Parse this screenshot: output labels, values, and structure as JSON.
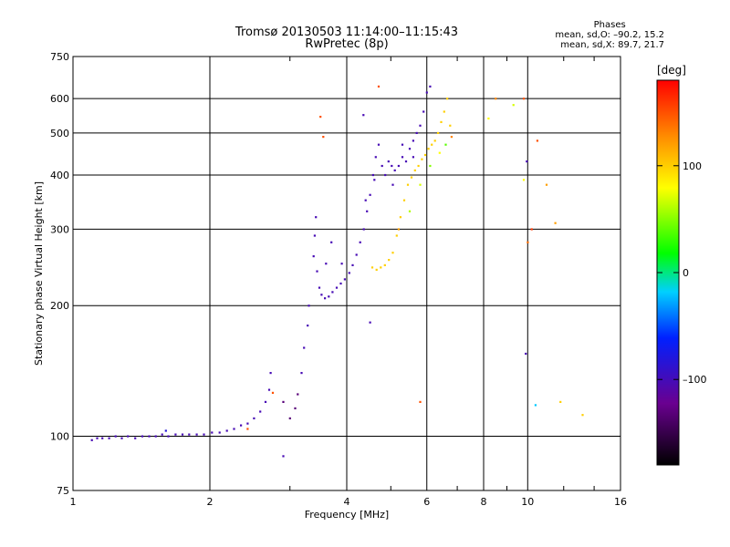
{
  "title": "Tromsø 20130503 11:14:00–11:15:43",
  "subtitle": "RwPretec (8p)",
  "phases": {
    "title": "Phases",
    "line1": "mean, sd,O: –90.2, 15.2",
    "line2": "mean, sd,X:  89.7, 21.7"
  },
  "colorbar": {
    "unit": "[deg]",
    "ticks": [
      {
        "value": 100,
        "label": "100"
      },
      {
        "value": 0,
        "label": "0"
      },
      {
        "value": -100,
        "label": "–100"
      }
    ],
    "range": [
      -180,
      180
    ]
  },
  "chart_data": {
    "type": "scatter",
    "xlabel": "Frequency [MHz]",
    "ylabel": "Stationary phase Virtual Height [km]",
    "xscale": "log",
    "yscale": "log",
    "xlim": [
      1,
      16
    ],
    "ylim": [
      75,
      750
    ],
    "xticks": [
      {
        "value": 1,
        "label": "1"
      },
      {
        "value": 2,
        "label": "2"
      },
      {
        "value": 4,
        "label": "4"
      },
      {
        "value": 6,
        "label": "6"
      },
      {
        "value": 8,
        "label": "8"
      },
      {
        "value": 10,
        "label": "10"
      },
      {
        "value": 16,
        "label": "16"
      }
    ],
    "yticks": [
      {
        "value": 75,
        "label": "75"
      },
      {
        "value": 100,
        "label": "100"
      },
      {
        "value": 200,
        "label": "200"
      },
      {
        "value": 300,
        "label": "300"
      },
      {
        "value": 400,
        "label": "400"
      },
      {
        "value": 500,
        "label": "500"
      },
      {
        "value": 600,
        "label": "600"
      },
      {
        "value": 750,
        "label": "750"
      }
    ],
    "grid": true,
    "series": [
      {
        "points": [
          [
            1.1,
            98,
            -100
          ],
          [
            1.13,
            99,
            -100
          ],
          [
            1.16,
            99,
            -100
          ],
          [
            1.2,
            99,
            -100
          ],
          [
            1.24,
            100,
            -100
          ],
          [
            1.28,
            99,
            -100
          ],
          [
            1.32,
            100,
            -100
          ],
          [
            1.37,
            99,
            -100
          ],
          [
            1.42,
            100,
            -100
          ],
          [
            1.47,
            100,
            -100
          ],
          [
            1.52,
            100,
            -100
          ],
          [
            1.57,
            101,
            -100
          ],
          [
            1.62,
            100,
            -100
          ],
          [
            1.68,
            101,
            -100
          ],
          [
            1.74,
            101,
            -100
          ],
          [
            1.8,
            101,
            -100
          ],
          [
            1.87,
            101,
            -100
          ],
          [
            1.94,
            101,
            -100
          ],
          [
            2.02,
            102,
            -100
          ],
          [
            2.1,
            102,
            -100
          ],
          [
            2.18,
            103,
            -100
          ],
          [
            2.26,
            104,
            -100
          ],
          [
            2.34,
            106,
            -100
          ],
          [
            2.42,
            107,
            -100
          ],
          [
            2.5,
            110,
            -100
          ],
          [
            2.58,
            114,
            -100
          ],
          [
            2.65,
            120,
            -100
          ],
          [
            2.7,
            128,
            -100
          ],
          [
            2.72,
            140,
            -100
          ],
          [
            2.9,
            120,
            -130
          ],
          [
            3.0,
            110,
            -130
          ],
          [
            3.08,
            116,
            -130
          ],
          [
            3.12,
            125,
            -130
          ],
          [
            3.18,
            140,
            -100
          ],
          [
            3.22,
            160,
            -100
          ],
          [
            3.28,
            180,
            -100
          ],
          [
            3.3,
            200,
            -100
          ],
          [
            3.38,
            260,
            -100
          ],
          [
            3.4,
            290,
            -100
          ],
          [
            3.42,
            320,
            -100
          ],
          [
            3.44,
            240,
            -100
          ],
          [
            3.48,
            220,
            -100
          ],
          [
            3.52,
            212,
            -100
          ],
          [
            3.58,
            208,
            -100
          ],
          [
            3.65,
            210,
            -100
          ],
          [
            3.72,
            215,
            -100
          ],
          [
            3.8,
            220,
            -100
          ],
          [
            3.88,
            225,
            -100
          ],
          [
            3.96,
            230,
            -100
          ],
          [
            4.05,
            238,
            -100
          ],
          [
            4.12,
            248,
            -100
          ],
          [
            4.2,
            262,
            -100
          ],
          [
            4.28,
            280,
            -100
          ],
          [
            4.36,
            300,
            -100
          ],
          [
            4.43,
            330,
            -100
          ],
          [
            4.5,
            360,
            -100
          ],
          [
            4.57,
            400,
            -100
          ],
          [
            4.63,
            440,
            -100
          ],
          [
            4.7,
            470,
            -100
          ],
          [
            4.78,
            420,
            -100
          ],
          [
            4.86,
            400,
            -100
          ],
          [
            4.94,
            430,
            -100
          ],
          [
            5.02,
            420,
            -100
          ],
          [
            5.1,
            410,
            -100
          ],
          [
            5.2,
            420,
            -100
          ],
          [
            5.3,
            440,
            -100
          ],
          [
            5.4,
            430,
            -100
          ],
          [
            5.5,
            460,
            -100
          ],
          [
            5.6,
            480,
            -100
          ],
          [
            5.7,
            500,
            -100
          ],
          [
            5.8,
            520,
            -100
          ],
          [
            5.9,
            560,
            -100
          ],
          [
            6.0,
            620,
            -100
          ],
          [
            6.1,
            640,
            -100
          ],
          [
            3.6,
            250,
            -100
          ],
          [
            3.7,
            280,
            -100
          ],
          [
            3.9,
            250,
            -100
          ],
          [
            4.4,
            350,
            -100
          ],
          [
            4.6,
            390,
            -100
          ],
          [
            5.05,
            380,
            -100
          ],
          [
            5.3,
            470,
            -100
          ],
          [
            5.6,
            440,
            -100
          ],
          [
            4.55,
            245,
            100
          ],
          [
            4.65,
            242,
            100
          ],
          [
            4.75,
            245,
            100
          ],
          [
            4.85,
            248,
            100
          ],
          [
            4.95,
            255,
            100
          ],
          [
            5.05,
            265,
            100
          ],
          [
            5.15,
            290,
            100
          ],
          [
            5.25,
            320,
            100
          ],
          [
            5.35,
            350,
            100
          ],
          [
            5.45,
            380,
            100
          ],
          [
            5.55,
            395,
            100
          ],
          [
            5.65,
            410,
            100
          ],
          [
            5.75,
            420,
            100
          ],
          [
            5.85,
            435,
            100
          ],
          [
            5.95,
            445,
            100
          ],
          [
            6.05,
            460,
            100
          ],
          [
            6.15,
            470,
            100
          ],
          [
            6.25,
            480,
            100
          ],
          [
            6.35,
            500,
            100
          ],
          [
            6.45,
            530,
            100
          ],
          [
            6.55,
            560,
            100
          ],
          [
            6.65,
            600,
            100
          ],
          [
            6.75,
            520,
            100
          ],
          [
            5.5,
            330,
            60
          ],
          [
            5.8,
            380,
            70
          ],
          [
            6.1,
            420,
            50
          ],
          [
            6.4,
            450,
            80
          ],
          [
            6.6,
            470,
            40
          ],
          [
            5.2,
            300,
            120
          ],
          [
            6.8,
            490,
            130
          ],
          [
            3.5,
            545,
            150
          ],
          [
            3.55,
            490,
            150
          ],
          [
            4.35,
            550,
            -100
          ],
          [
            4.7,
            640,
            150
          ],
          [
            5.8,
            120,
            150
          ],
          [
            2.75,
            126,
            150
          ],
          [
            2.9,
            90,
            -100
          ],
          [
            9.3,
            580,
            70
          ],
          [
            9.8,
            600,
            150
          ],
          [
            10.0,
            280,
            140
          ],
          [
            9.95,
            430,
            -100
          ],
          [
            9.9,
            155,
            -100
          ],
          [
            10.5,
            480,
            150
          ],
          [
            11.0,
            380,
            120
          ],
          [
            11.5,
            310,
            120
          ],
          [
            10.2,
            300,
            160
          ],
          [
            11.8,
            120,
            100
          ],
          [
            13.2,
            112,
            100
          ],
          [
            8.5,
            600,
            130
          ],
          [
            8.2,
            540,
            80
          ],
          [
            4.5,
            183,
            -100
          ],
          [
            9.8,
            390,
            80
          ],
          [
            10.4,
            118,
            -20
          ],
          [
            2.42,
            104,
            150
          ],
          [
            1.6,
            103,
            -80
          ]
        ]
      }
    ]
  }
}
